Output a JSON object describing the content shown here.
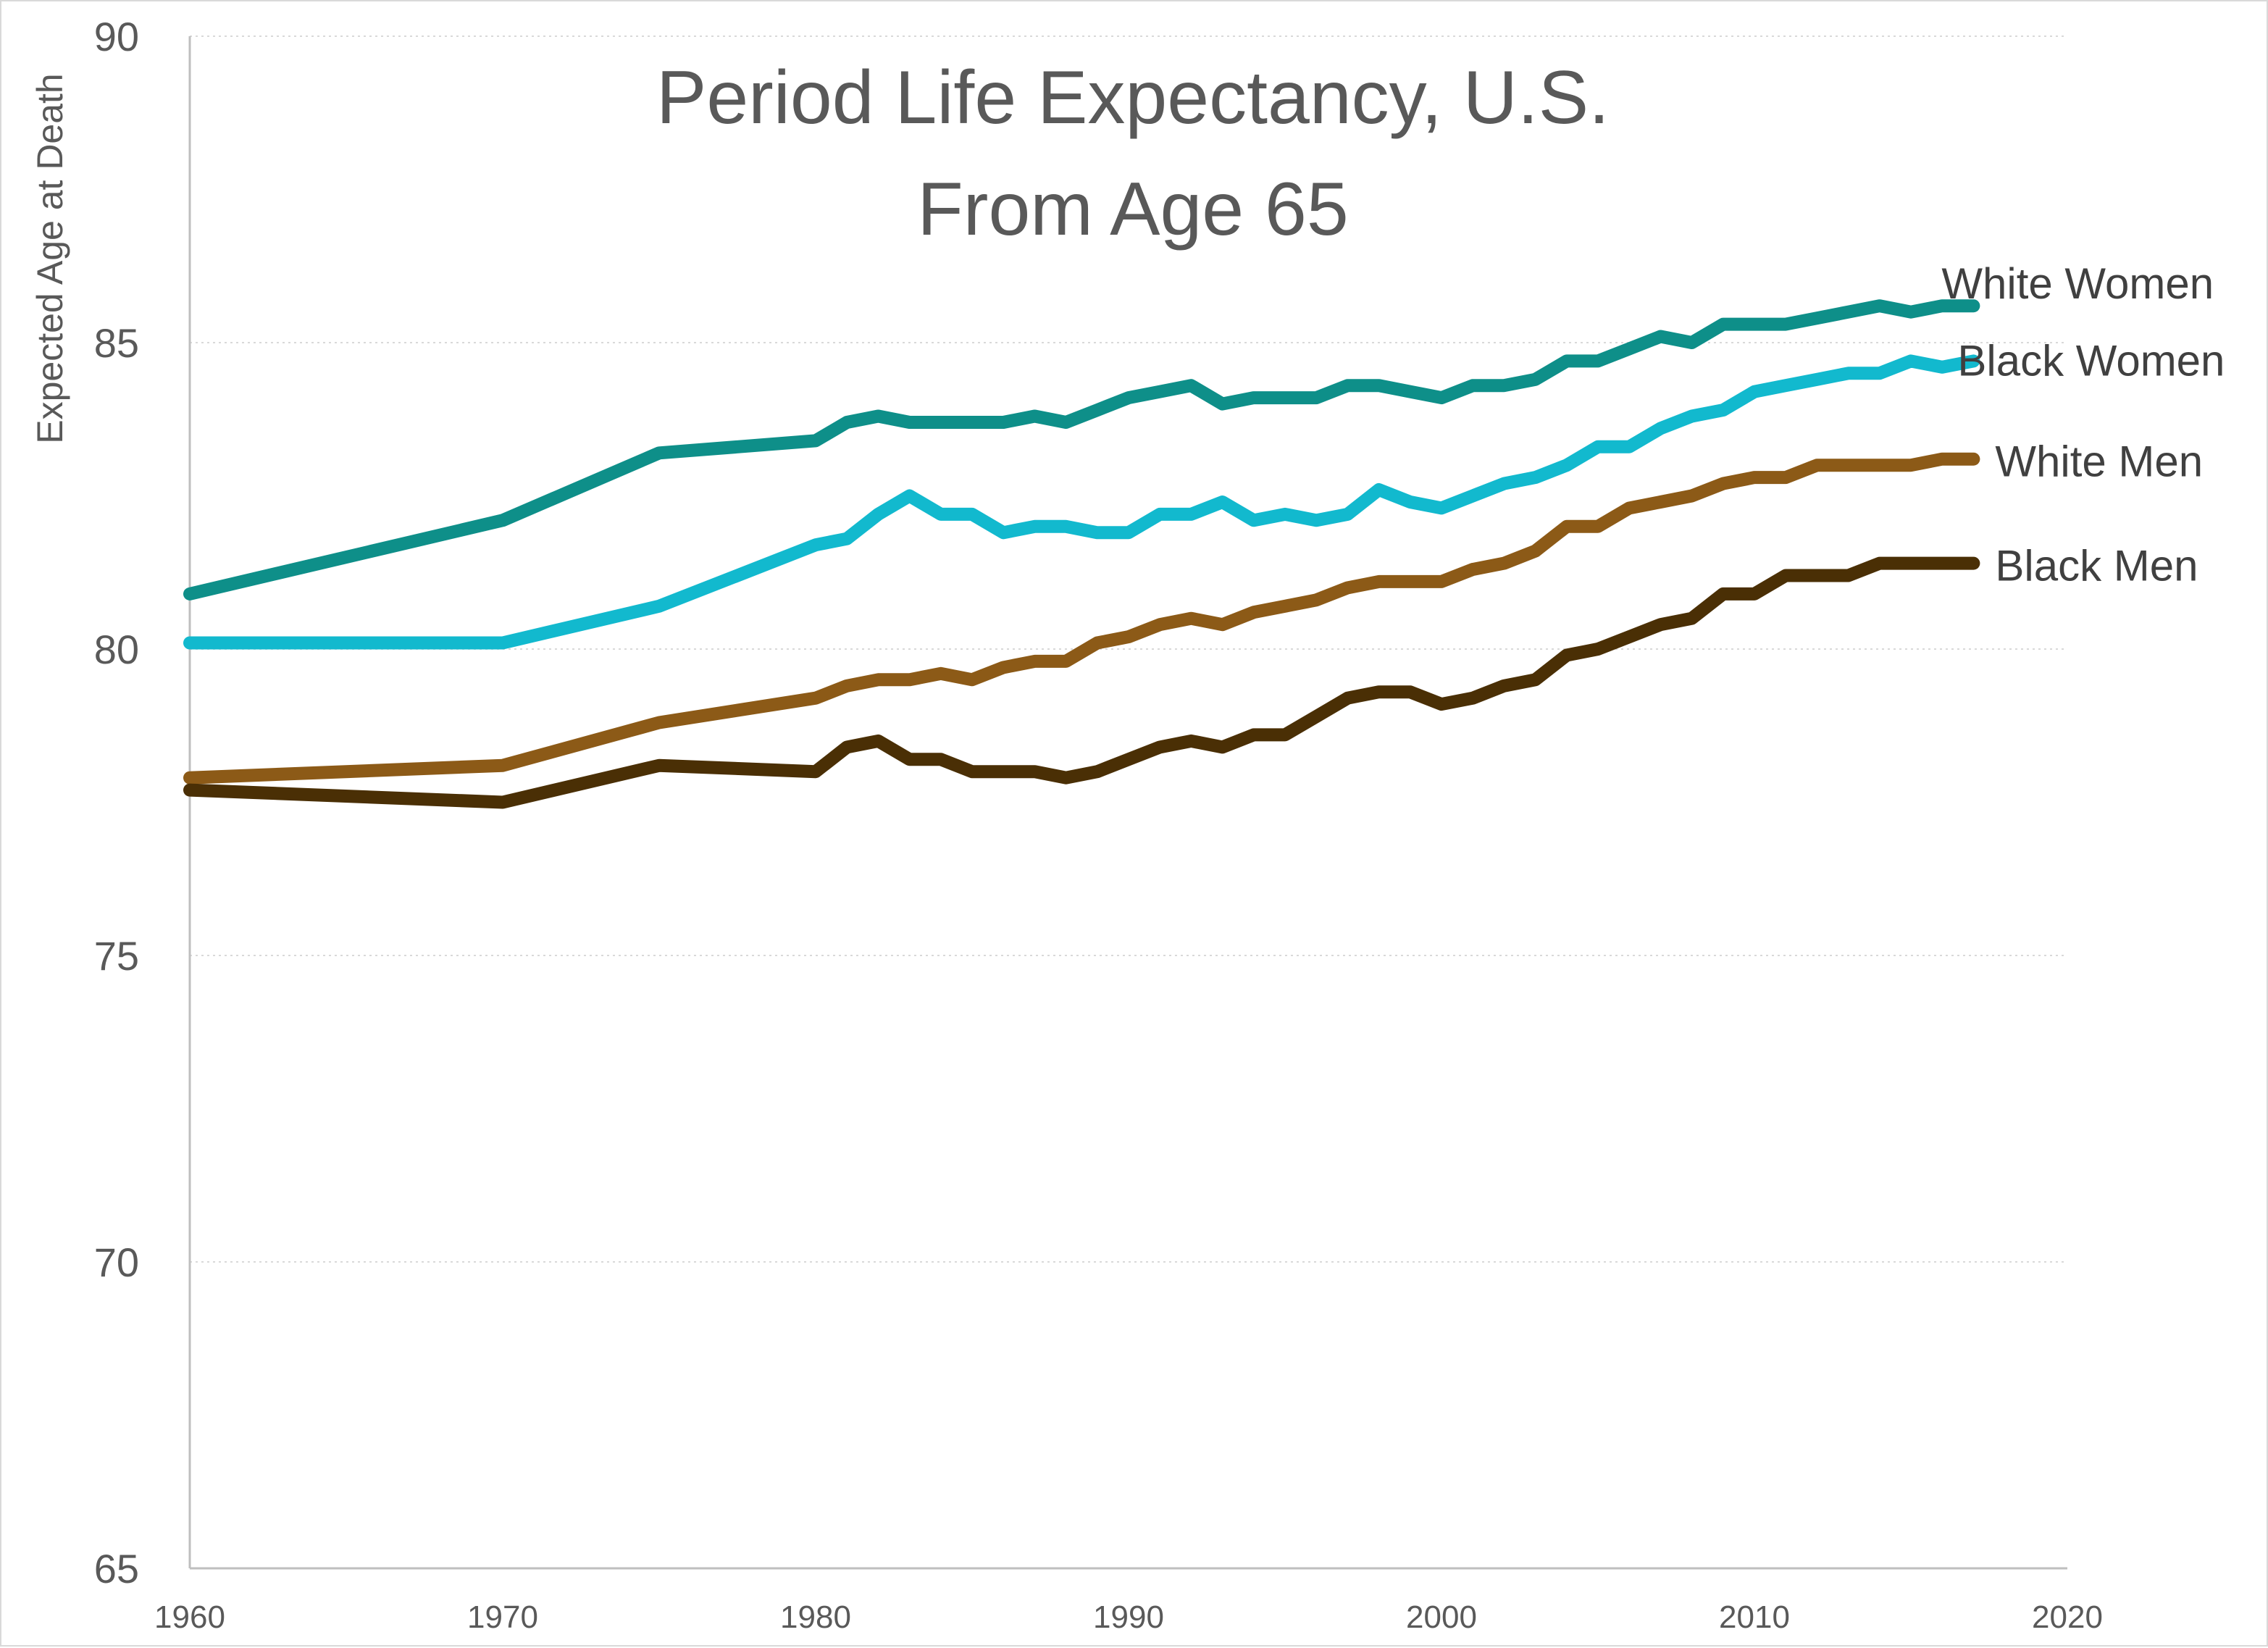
{
  "chart_data": {
    "type": "line",
    "title": [
      "Period Life Expectancy, U.S.",
      "From Age 65"
    ],
    "xlabel": "",
    "ylabel": "Expected Age at Death",
    "xlim": [
      1960,
      2020
    ],
    "ylim": [
      65,
      90
    ],
    "x_ticks": [
      1960,
      1970,
      1980,
      1990,
      2000,
      2010,
      2020
    ],
    "y_ticks": [
      65,
      70,
      75,
      80,
      85,
      90
    ],
    "grid": "horizontal dotted",
    "legend": "direct labels at line ends (right)",
    "x": [
      1960,
      1970,
      1975,
      1980,
      1981,
      1982,
      1983,
      1984,
      1985,
      1986,
      1987,
      1988,
      1989,
      1990,
      1991,
      1992,
      1993,
      1994,
      1995,
      1996,
      1997,
      1998,
      1999,
      2000,
      2001,
      2002,
      2003,
      2004,
      2005,
      2006,
      2007,
      2008,
      2009,
      2010,
      2011,
      2012,
      2013,
      2014,
      2015,
      2016,
      2017
    ],
    "series": [
      {
        "name": "White Women",
        "color": "#0e8f89",
        "values": [
          80.9,
          82.1,
          83.2,
          83.4,
          83.7,
          83.8,
          83.7,
          83.7,
          83.7,
          83.7,
          83.8,
          83.7,
          83.9,
          84.1,
          84.2,
          84.3,
          84.0,
          84.1,
          84.1,
          84.1,
          84.3,
          84.3,
          84.2,
          84.1,
          84.3,
          84.3,
          84.4,
          84.7,
          84.7,
          84.9,
          85.1,
          85.0,
          85.3,
          85.3,
          85.3,
          85.4,
          85.5,
          85.6,
          85.5,
          85.6,
          85.6
        ]
      },
      {
        "name": "Black Women",
        "color": "#12b9ce",
        "values": [
          80.1,
          80.1,
          80.7,
          81.7,
          81.8,
          82.2,
          82.5,
          82.2,
          82.2,
          81.9,
          82.0,
          82.0,
          81.9,
          81.9,
          82.2,
          82.2,
          82.4,
          82.1,
          82.2,
          82.1,
          82.2,
          82.6,
          82.4,
          82.3,
          82.5,
          82.7,
          82.8,
          83.0,
          83.3,
          83.3,
          83.6,
          83.8,
          83.9,
          84.2,
          84.3,
          84.4,
          84.5,
          84.5,
          84.7,
          84.6,
          84.7
        ]
      },
      {
        "name": "White Men",
        "color": "#8c5a17",
        "values": [
          77.9,
          78.1,
          78.8,
          79.2,
          79.4,
          79.5,
          79.5,
          79.6,
          79.5,
          79.7,
          79.8,
          79.8,
          80.1,
          80.2,
          80.4,
          80.5,
          80.4,
          80.6,
          80.7,
          80.8,
          81.0,
          81.1,
          81.1,
          81.1,
          81.3,
          81.4,
          81.6,
          82.0,
          82.0,
          82.3,
          82.4,
          82.5,
          82.7,
          82.8,
          82.8,
          83.0,
          83.0,
          83.0,
          83.0,
          83.1,
          83.1
        ]
      },
      {
        "name": "Black Men",
        "color": "#4a2f05",
        "values": [
          77.7,
          77.5,
          78.1,
          78.0,
          78.4,
          78.5,
          78.2,
          78.2,
          78.0,
          78.0,
          78.0,
          77.9,
          78.0,
          78.2,
          78.4,
          78.5,
          78.4,
          78.6,
          78.6,
          78.9,
          79.2,
          79.3,
          79.3,
          79.1,
          79.2,
          79.4,
          79.5,
          79.9,
          80.0,
          80.2,
          80.4,
          80.5,
          80.9,
          80.9,
          81.2,
          81.2,
          81.2,
          81.4,
          81.4,
          81.4,
          81.4
        ]
      }
    ]
  }
}
